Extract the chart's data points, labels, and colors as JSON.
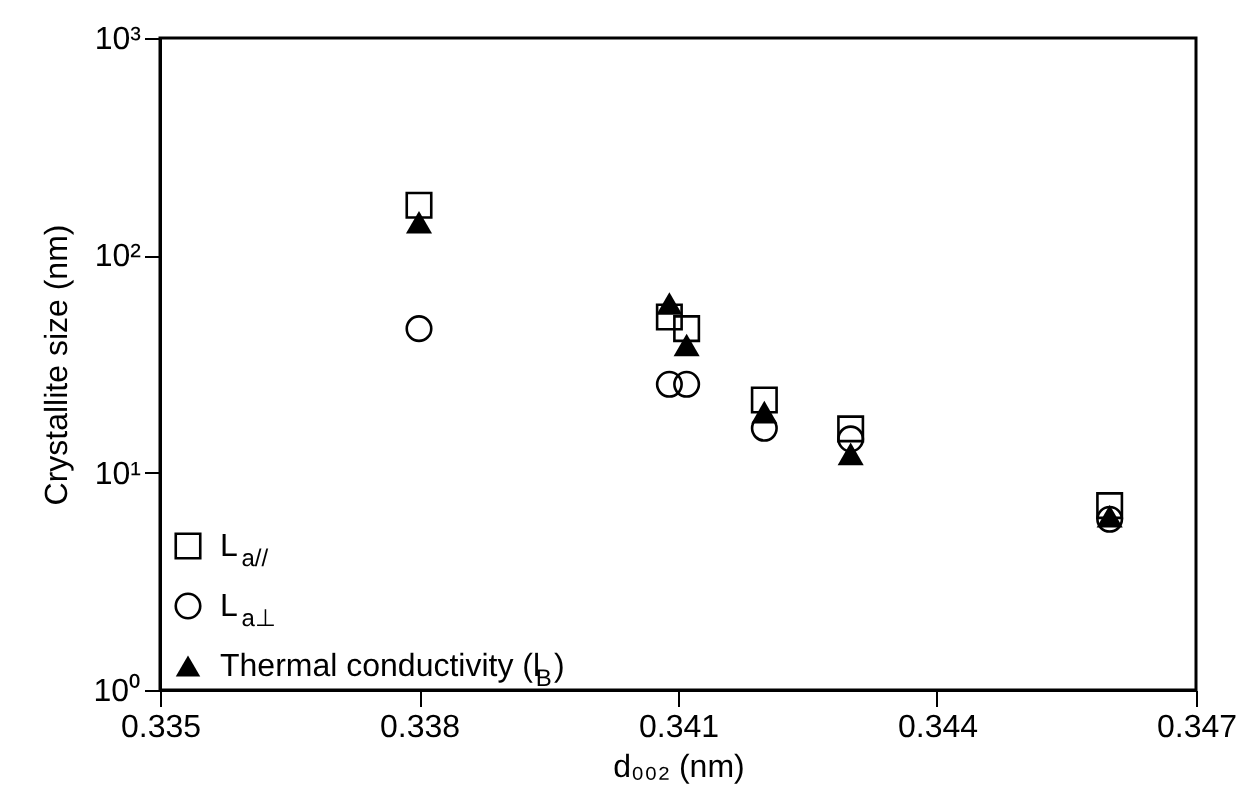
{
  "chart_data": {
    "type": "scatter",
    "xlabel": "d₀₀₂ (nm)",
    "ylabel": "Crystallite size (nm)",
    "xlim": [
      0.335,
      0.347
    ],
    "xticks": [
      0.335,
      0.338,
      0.341,
      0.344,
      0.347
    ],
    "ylim": [
      1,
      1000
    ],
    "yticks": [
      {
        "value": 1,
        "label": "10⁰"
      },
      {
        "value": 10,
        "label": "10¹"
      },
      {
        "value": 100,
        "label": "10²"
      },
      {
        "value": 1000,
        "label": "10³"
      }
    ],
    "log": "y",
    "grid": false,
    "legend": "bottom left",
    "series": [
      {
        "name": "L$_{a//}$",
        "color": "#000000",
        "marker": "square",
        "x": [
          0.338,
          0.3409,
          0.3411,
          0.342,
          0.343,
          0.346
        ],
        "values": [
          170,
          52,
          46,
          21.6,
          15.9,
          7.05
        ]
      },
      {
        "name": "L$_{a⊥}$",
        "color": "#000000",
        "marker": "circle",
        "x": [
          0.338,
          0.3409,
          0.3411,
          0.342,
          0.343,
          0.346
        ],
        "values": [
          46,
          25.5,
          25.5,
          16,
          14.3,
          6.1
        ]
      },
      {
        "name": "Thermal conductivity (l$_{B}$)",
        "color": "#000000",
        "marker": "triangle",
        "x": [
          0.338,
          0.3409,
          0.3411,
          0.342,
          0.343,
          0.346
        ],
        "values": [
          142,
          60,
          38.7,
          19,
          12.2,
          6.3
        ]
      }
    ]
  }
}
